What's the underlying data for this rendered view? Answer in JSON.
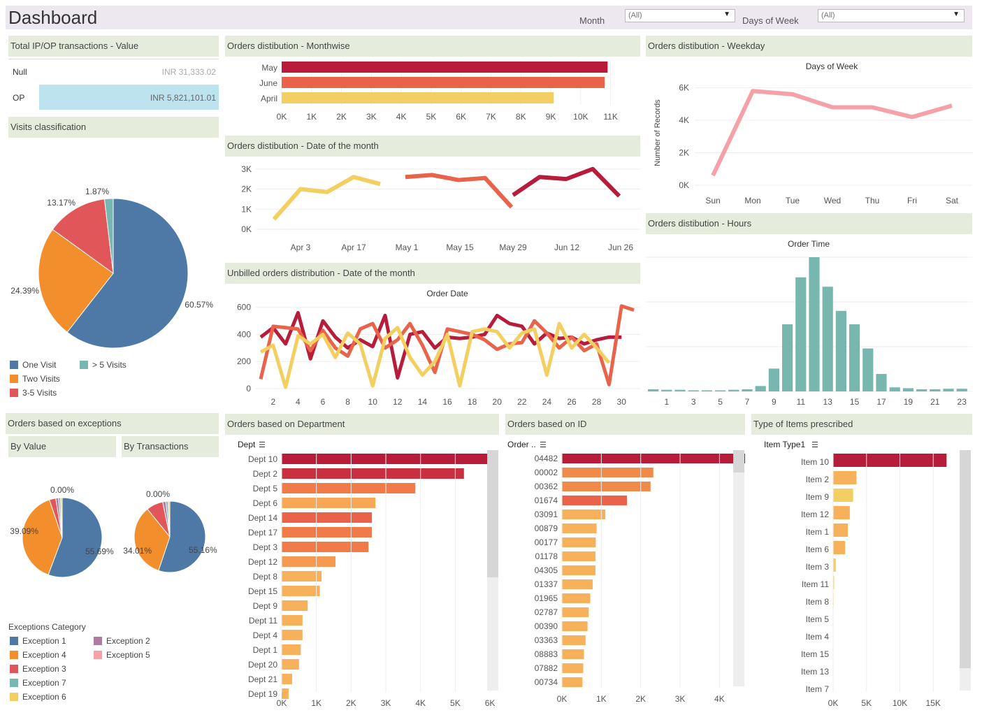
{
  "header": {
    "title": "Dashboard",
    "month_label": "Month",
    "month_value": "(All)",
    "dow_label": "Days of Week",
    "dow_value": "(All)"
  },
  "panels": {
    "total": "Total IP/OP  transactions - Value",
    "visits": "Visits classification",
    "monthwise": "Orders distibution - Monthwise",
    "weekday": "Orders distibution - Weekday",
    "date": "Orders distibution - Date of the month",
    "hours": "Orders distibution - Hours",
    "unbilled": "Unbilled orders distribution - Date of the month",
    "exceptions": "Orders based on exceptions",
    "by_value": "By Value",
    "by_transactions": "By Transactions",
    "department": "Orders based on Department",
    "id": "Orders based on ID",
    "items": "Type of Items  prescribed"
  },
  "colors": {
    "dark_red": "#b81c3b",
    "red_orange": "#e8634a",
    "orange": "#f08a4b",
    "light_orange": "#f7b15a",
    "yellow": "#f3cf61",
    "teal": "#77b7b0",
    "pink": "#f6a0a8",
    "blue": "#4e79a7",
    "pie_orange": "#f28e2b",
    "pie_red": "#e15759",
    "pie_teal": "#76b7b2",
    "light_blue": "#bde3ef"
  },
  "chart_data": [
    {
      "id": "total_transactions",
      "type": "table",
      "rows": [
        {
          "label": "Null",
          "value": "INR 31,333.02"
        },
        {
          "label": "OP",
          "value": "INR 5,821,101.01"
        }
      ]
    },
    {
      "id": "visits_classification",
      "type": "pie",
      "slices": [
        {
          "name": "One Visit",
          "value": 60.57,
          "label": "60.57%"
        },
        {
          "name": "Two Visits",
          "value": 24.39,
          "label": "24.39%"
        },
        {
          "name": "3-5 Visits",
          "value": 13.17,
          "label": "13.17%"
        },
        {
          "name": "> 5 Visits",
          "value": 1.87,
          "label": "1.87%"
        }
      ],
      "legend": [
        "One Visit",
        "> 5 Visits",
        "Two Visits",
        "3-5 Visits"
      ]
    },
    {
      "id": "monthwise",
      "type": "bar",
      "orientation": "horizontal",
      "categories": [
        "May",
        "June",
        "April"
      ],
      "values": [
        10900,
        10800,
        9100
      ],
      "xlim": [
        0,
        11500
      ],
      "xticks": [
        "0K",
        "1K",
        "2K",
        "3K",
        "4K",
        "5K",
        "6K",
        "7K",
        "8K",
        "9K",
        "10K",
        "11K"
      ]
    },
    {
      "id": "weekday",
      "type": "line",
      "title": "Days of Week",
      "ylabel": "Number of Records",
      "categories": [
        "Sun",
        "Mon",
        "Tue",
        "Wed",
        "Thu",
        "Fri",
        "Sat"
      ],
      "values": [
        600,
        5800,
        5600,
        4800,
        4800,
        4200,
        4900
      ],
      "ylim": [
        0,
        6500
      ],
      "yticks": [
        "6K",
        "4K",
        "2K",
        "0K"
      ]
    },
    {
      "id": "date_of_month",
      "type": "line",
      "xticks": [
        "Apr 3",
        "Apr 17",
        "May 1",
        "May 15",
        "May 29",
        "Jun 12",
        "Jun 26"
      ],
      "yticks": [
        "3K",
        "2K",
        "1K",
        "0K"
      ],
      "ylim": [
        0,
        3200
      ],
      "series": [
        {
          "x": [
            "Mar 27",
            "Apr 3",
            "Apr 10",
            "Apr 17",
            "Apr 24"
          ],
          "values": [
            500,
            2000,
            1850,
            2600,
            2250
          ]
        },
        {
          "x": [
            "May 1",
            "May 8",
            "May 15",
            "May 22",
            "May 29"
          ],
          "values": [
            2600,
            2700,
            2450,
            2550,
            1100
          ]
        },
        {
          "x": [
            "May 29",
            "Jun 5",
            "Jun 12",
            "Jun 19",
            "Jun 26"
          ],
          "values": [
            1700,
            2600,
            2500,
            3000,
            1650
          ]
        }
      ]
    },
    {
      "id": "hours",
      "type": "bar",
      "title": "Order Time",
      "categories": [
        "0",
        "1",
        "2",
        "3",
        "4",
        "5",
        "6",
        "7",
        "8",
        "9",
        "10",
        "11",
        "12",
        "13",
        "14",
        "15",
        "16",
        "17",
        "18",
        "19",
        "20",
        "21",
        "22",
        "23"
      ],
      "xticks": [
        "1",
        "3",
        "5",
        "7",
        "9",
        "11",
        "13",
        "15",
        "17",
        "19",
        "21",
        "23"
      ],
      "values": [
        0.016,
        0.012,
        0.012,
        0.008,
        0.008,
        0.008,
        0.012,
        0.016,
        0.04,
        0.17,
        0.5,
        0.85,
        1.0,
        0.78,
        0.6,
        0.5,
        0.32,
        0.13,
        0.03,
        0.024,
        0.016,
        0.016,
        0.02,
        0.02
      ]
    },
    {
      "id": "unbilled",
      "type": "line",
      "title": "Order Date",
      "xticks": [
        "2",
        "4",
        "6",
        "8",
        "10",
        "12",
        "14",
        "16",
        "18",
        "20",
        "22",
        "24",
        "26",
        "28",
        "30"
      ],
      "yticks": [
        "600",
        "400",
        "200",
        "0"
      ],
      "ylim": [
        0,
        650
      ],
      "series": [
        {
          "values": [
            380,
            450,
            330,
            560,
            220,
            500,
            380,
            300,
            360,
            310,
            540,
            80,
            400,
            420,
            300,
            380,
            370,
            380,
            400,
            540,
            480,
            460,
            330,
            410,
            370,
            380,
            330,
            360,
            380,
            380
          ]
        },
        {
          "values": [
            70,
            460,
            450,
            440,
            280,
            430,
            300,
            240,
            440,
            480,
            300,
            360,
            480,
            320,
            120,
            440,
            420,
            400,
            360,
            290,
            330,
            340,
            500,
            410,
            300,
            380,
            280,
            330,
            30,
            610,
            580
          ]
        },
        {
          "values": [
            270,
            320,
            10,
            390,
            330,
            400,
            230,
            410,
            330,
            20,
            370,
            450,
            230,
            100,
            200,
            400,
            20,
            420,
            440,
            420,
            300,
            410,
            440,
            100,
            480,
            300,
            400,
            300,
            190
          ]
        }
      ]
    },
    {
      "id": "exceptions_by_value",
      "type": "pie",
      "slices": [
        {
          "name": "Exception 1",
          "value": 55.69,
          "label": "55.69%"
        },
        {
          "name": "Exception 4",
          "value": 39.09,
          "label": "39.09%"
        },
        {
          "name": "Exception 3",
          "value": 2.6
        },
        {
          "name": "Exception 2",
          "value": 1.1
        },
        {
          "name": "Exception 7",
          "value": 0.8
        },
        {
          "name": "Exception 6",
          "value": 0.72
        },
        {
          "name": "Exception 5",
          "value": 0.0,
          "label": "0.00%"
        }
      ]
    },
    {
      "id": "exceptions_by_transactions",
      "type": "pie",
      "slices": [
        {
          "name": "Exception 1",
          "value": 55.16,
          "label": "55.16%"
        },
        {
          "name": "Exception 4",
          "value": 34.01,
          "label": "34.01%"
        },
        {
          "name": "Exception 3",
          "value": 7.6
        },
        {
          "name": "Exception 2",
          "value": 1.4
        },
        {
          "name": "Exception 7",
          "value": 1.0
        },
        {
          "name": "Exception 6",
          "value": 0.83
        },
        {
          "name": "Exception 5",
          "value": 0.0,
          "label": "0.00%"
        }
      ]
    },
    {
      "id": "department",
      "type": "bar",
      "orientation": "horizontal",
      "header": "Dept",
      "categories": [
        "Dept 10",
        "Dept 2",
        "Dept 5",
        "Dept 6",
        "Dept 14",
        "Dept 17",
        "Dept 3",
        "Dept 12",
        "Dept 8",
        "Dept 15",
        "Dept 9",
        "Dept 11",
        "Dept 4",
        "Dept 1",
        "Dept 20",
        "Dept 21",
        "Dept 19"
      ],
      "values": [
        5950,
        5250,
        3850,
        2700,
        2600,
        2600,
        2500,
        1550,
        1150,
        1100,
        750,
        600,
        600,
        550,
        500,
        300,
        200
      ],
      "xlim": [
        0,
        6200
      ],
      "xticks": [
        "0K",
        "1K",
        "2K",
        "3K",
        "4K",
        "5K",
        "6K"
      ]
    },
    {
      "id": "order_id",
      "type": "bar",
      "orientation": "horizontal",
      "header": "Order ..",
      "categories": [
        "04482",
        "00002",
        "00362",
        "01674",
        "03091",
        "00879",
        "00177",
        "01178",
        "04305",
        "01337",
        "01965",
        "02787",
        "00390",
        "03363",
        "08883",
        "07882",
        "00734"
      ],
      "values": [
        4780,
        2320,
        2250,
        1650,
        1100,
        880,
        860,
        850,
        850,
        780,
        720,
        680,
        650,
        600,
        560,
        540,
        520
      ],
      "xlim": [
        0,
        5000
      ],
      "xticks": [
        "0K",
        "1K",
        "2K",
        "3K",
        "4K"
      ]
    },
    {
      "id": "items",
      "type": "bar",
      "orientation": "horizontal",
      "header": "Item Type1",
      "categories": [
        "Item 10",
        "Item 2",
        "Item 9",
        "Item 12",
        "Item 1",
        "Item 6",
        "Item 3",
        "Item 11",
        "Item 8",
        "Item 5",
        "Item 4",
        "Item 15",
        "Item 13",
        "Item 7"
      ],
      "values": [
        17000,
        3500,
        3000,
        2500,
        2200,
        1800,
        400,
        150,
        80,
        0,
        0,
        0,
        0,
        0
      ],
      "xlim": [
        0,
        19000
      ],
      "xticks": [
        "0K",
        "5K",
        "10K",
        "15K"
      ]
    }
  ],
  "exception_legend": {
    "title": "Exceptions Category",
    "items": [
      "Exception 1",
      "Exception 2",
      "Exception 4",
      "Exception 5",
      "Exception 3",
      "Exception 7",
      "Exception 6"
    ]
  }
}
